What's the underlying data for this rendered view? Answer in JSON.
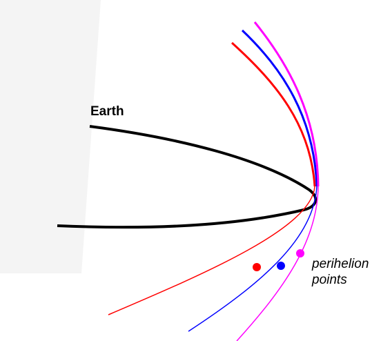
{
  "labels": {
    "earth": "Earth",
    "perihelion_line1": "perihelion",
    "perihelion_line2": "points"
  },
  "colors": {
    "background_panel": "#f4f4f4",
    "earth_orbit": "#000000",
    "orbit_red": "#ff0000",
    "orbit_blue": "#0000ff",
    "orbit_magenta": "#ff00ff"
  },
  "orbits": [
    {
      "name": "earth-orbit",
      "color_key": "earth_orbit"
    },
    {
      "name": "red-orbit",
      "color_key": "orbit_red"
    },
    {
      "name": "blue-orbit",
      "color_key": "orbit_blue"
    },
    {
      "name": "magenta-orbit",
      "color_key": "orbit_magenta"
    }
  ]
}
